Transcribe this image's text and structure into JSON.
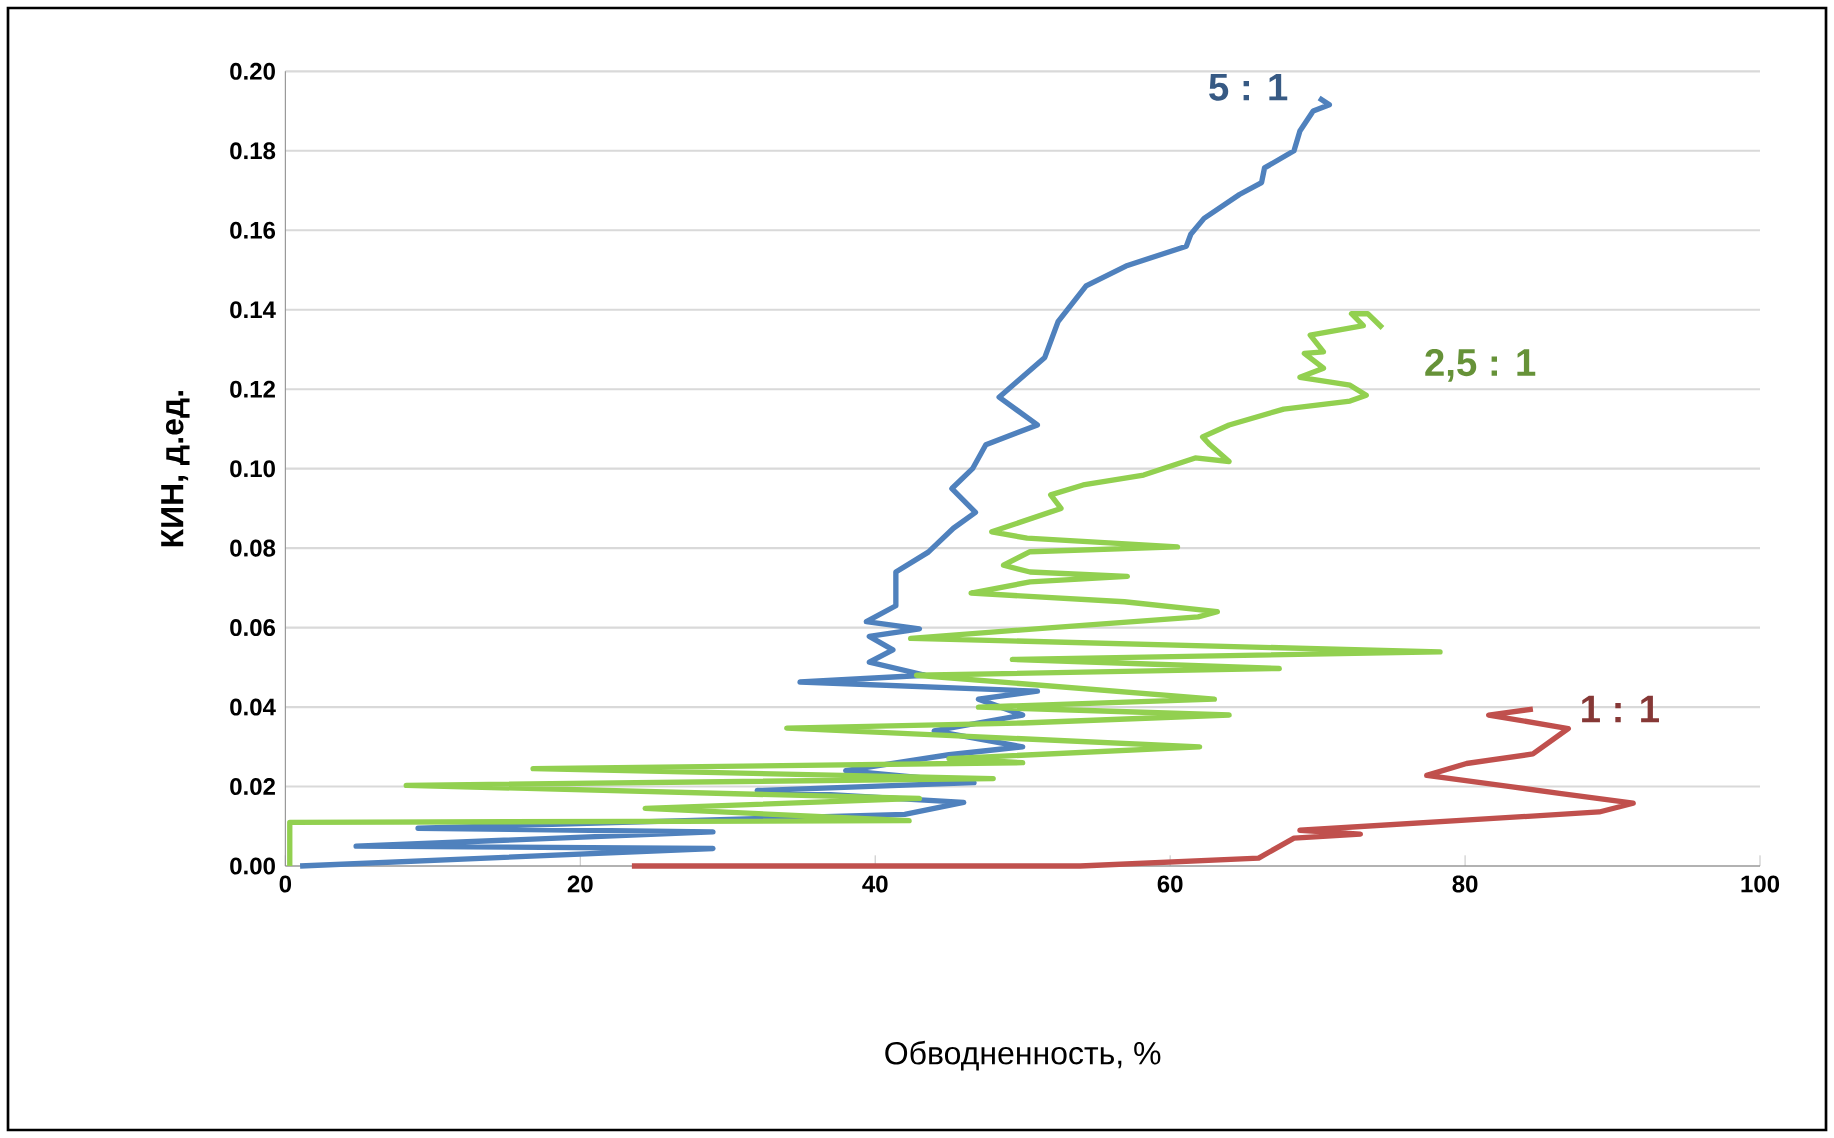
{
  "chart_data": {
    "type": "line",
    "xlabel": "Обводненность, %",
    "ylabel": "КИН, д.ед.",
    "xlim": [
      0,
      100
    ],
    "xticks": [
      0,
      20,
      40,
      60,
      80,
      100
    ],
    "ylim": [
      0,
      0.2
    ],
    "yticks": [
      {
        "value": 0,
        "label": "0.00"
      },
      {
        "value": 0.02,
        "label": "0.02"
      },
      {
        "value": 0.04,
        "label": "0.04"
      },
      {
        "value": 0.06,
        "label": "0.06"
      },
      {
        "value": 0.08,
        "label": "0.08"
      },
      {
        "value": 0.1,
        "label": "0.10"
      },
      {
        "value": 0.12,
        "label": "0.12"
      },
      {
        "value": 0.14,
        "label": "0.14"
      },
      {
        "value": 0.16,
        "label": "0.16"
      },
      {
        "value": 0.18,
        "label": "0.18"
      },
      {
        "value": 0.2,
        "label": "0.20"
      }
    ],
    "grid": "y",
    "legend": false,
    "marker": "none",
    "line_style": "solid",
    "series": [
      {
        "name": "5 : 1",
        "color": "#4f81bd",
        "x": [
          1,
          29,
          4.8,
          29,
          9,
          42,
          46,
          32,
          46.7,
          38,
          45,
          50,
          44,
          50,
          47,
          51,
          34.9,
          43.4,
          39.6,
          41.2,
          39.6,
          43,
          39.4,
          41.4,
          41.4,
          43.6,
          45.3,
          46.8,
          45.2,
          46.6,
          47.5,
          51,
          48.4,
          51.5,
          52.4,
          54.3,
          57,
          61.1,
          61.4,
          62.3,
          64.7,
          66.2,
          66.4,
          68.4,
          68.8,
          69.7,
          70.8,
          70.1
        ],
        "values": [
          0,
          0.0044,
          0.005,
          0.0086,
          0.0095,
          0.013,
          0.016,
          0.019,
          0.021,
          0.024,
          0.028,
          0.03,
          0.034,
          0.038,
          0.042,
          0.044,
          0.0463,
          0.048,
          0.0513,
          0.0544,
          0.0578,
          0.0597,
          0.0615,
          0.0655,
          0.074,
          0.079,
          0.085,
          0.089,
          0.095,
          0.1,
          0.106,
          0.111,
          0.118,
          0.128,
          0.137,
          0.146,
          0.151,
          0.156,
          0.159,
          0.163,
          0.169,
          0.172,
          0.1757,
          0.18,
          0.185,
          0.19,
          0.1916,
          0.1933
        ]
      },
      {
        "name": "2,5 : 1",
        "color": "#92d050",
        "x": [
          0.3,
          0.3,
          42.3,
          24.4,
          43,
          8.2,
          48,
          16.8,
          50,
          45,
          62,
          34,
          50,
          64,
          47,
          63,
          42.8,
          67.4,
          49.3,
          78.3,
          42.4,
          52,
          61.9,
          63.2,
          56.9,
          46.5,
          50.5,
          57.1,
          50.5,
          48.7,
          50.5,
          60.5,
          50.3,
          47.9,
          52.6,
          51.9,
          54.1,
          58.2,
          61.7,
          64,
          62.7,
          62.2,
          64,
          67.7,
          72.2,
          73.3,
          72.2,
          68.8,
          70.4,
          69.1,
          70.4,
          69.5,
          73.1,
          72.3,
          73.4,
          74.4
        ],
        "values": [
          0,
          0.011,
          0.0114,
          0.0145,
          0.017,
          0.0203,
          0.022,
          0.0245,
          0.026,
          0.027,
          0.03,
          0.0347,
          0.036,
          0.038,
          0.04,
          0.042,
          0.048,
          0.0497,
          0.052,
          0.0539,
          0.0573,
          0.06,
          0.0627,
          0.064,
          0.0665,
          0.0687,
          0.0715,
          0.0729,
          0.074,
          0.0757,
          0.0791,
          0.0803,
          0.0825,
          0.0841,
          0.09,
          0.0934,
          0.0959,
          0.0984,
          0.1027,
          0.1018,
          0.106,
          0.108,
          0.111,
          0.115,
          0.117,
          0.1185,
          0.121,
          0.123,
          0.1253,
          0.129,
          0.1294,
          0.1336,
          0.136,
          0.139,
          0.139,
          0.1354
        ]
      },
      {
        "name": "1 : 1",
        "color": "#c0504d",
        "x": [
          23.5,
          53.9,
          66,
          68.4,
          72.9,
          68.8,
          89.1,
          91.4,
          86.4,
          83.2,
          77.4,
          80.1,
          84.6,
          87,
          81.6,
          84.6
        ],
        "values": [
          0,
          0,
          0.002,
          0.007,
          0.008,
          0.009,
          0.0136,
          0.0158,
          0.0183,
          0.0199,
          0.0228,
          0.0258,
          0.0282,
          0.0346,
          0.038,
          0.0395
        ]
      }
    ]
  }
}
